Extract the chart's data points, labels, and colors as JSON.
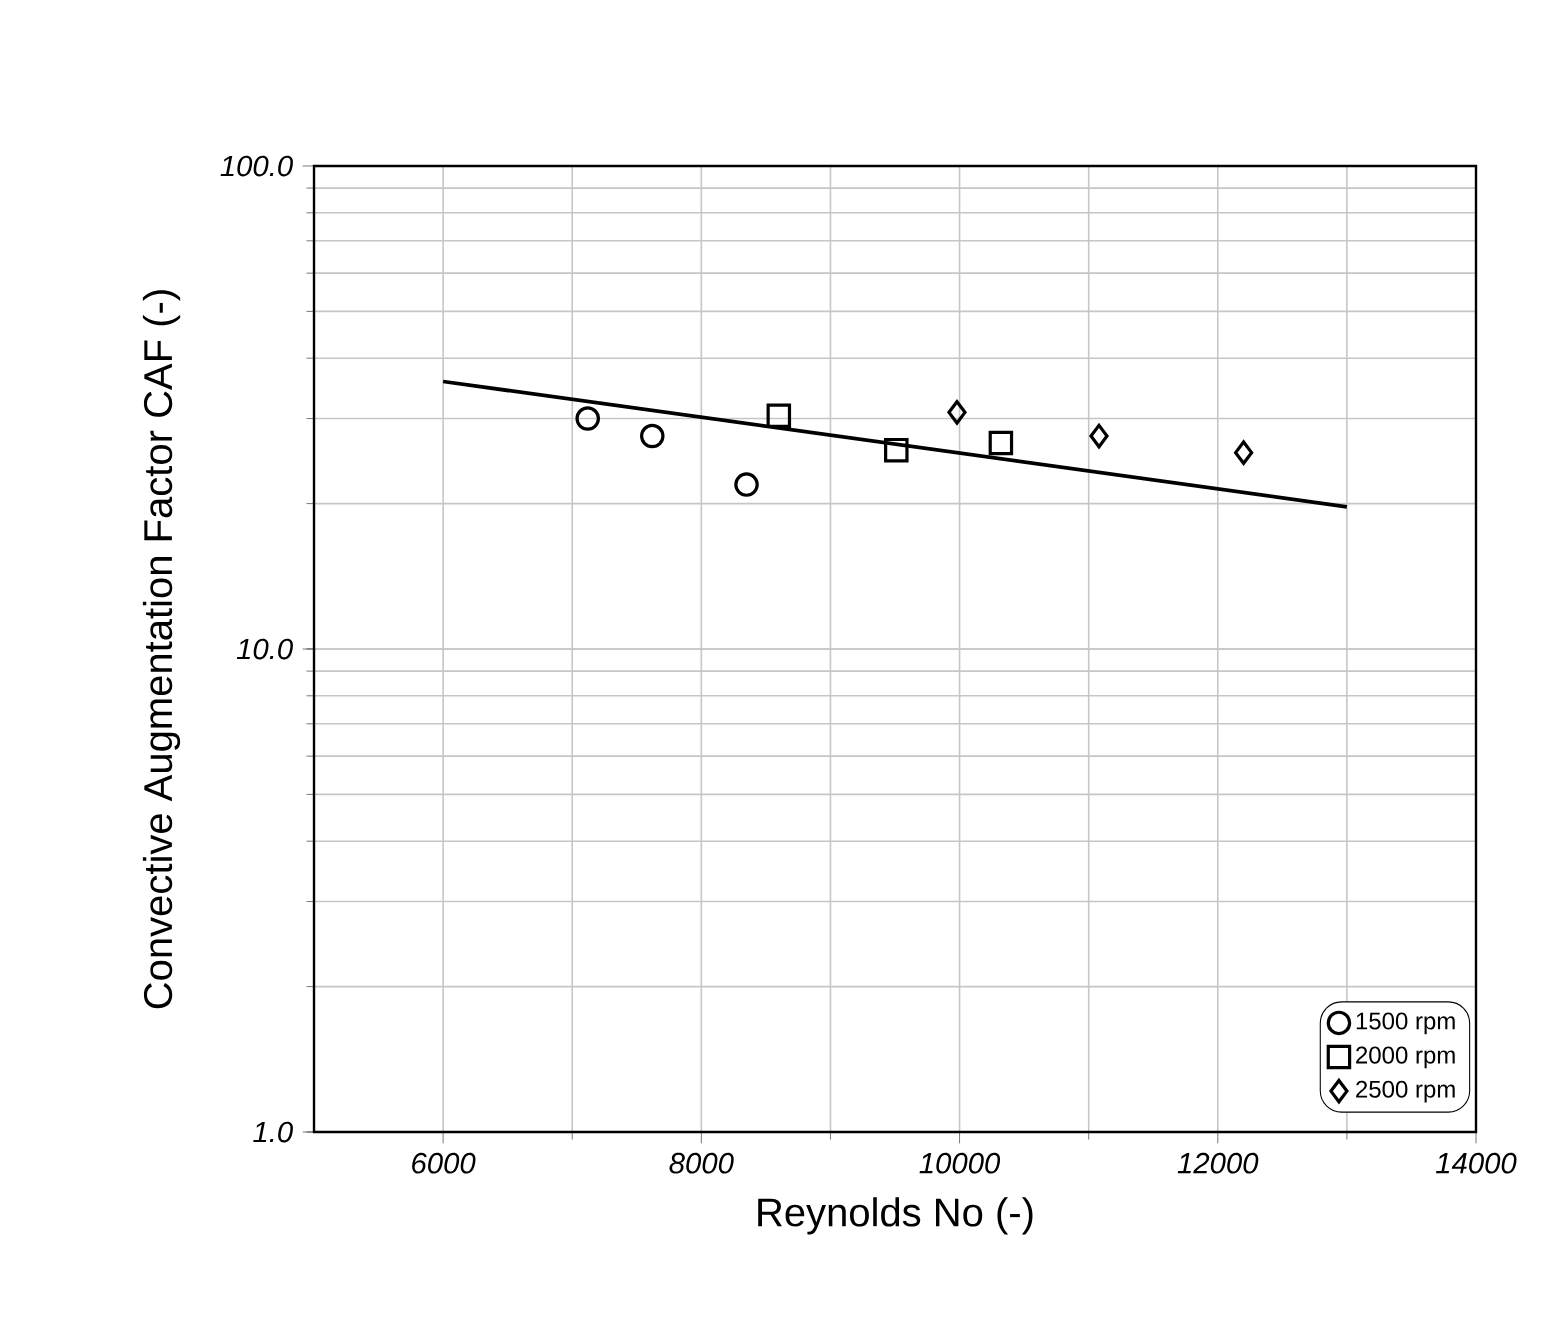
{
  "chart_data": {
    "type": "scatter",
    "xlabel": "Reynolds No (-)",
    "ylabel": "Convective Augmentation Factor CAF (-)",
    "xlim": [
      5000,
      14000
    ],
    "xticks": [
      6000,
      8000,
      10000,
      12000,
      14000
    ],
    "ylim": [
      1,
      100
    ],
    "yticks": [
      {
        "value": 1,
        "label": "1.0"
      },
      {
        "value": 10,
        "label": "10.0"
      },
      {
        "value": 100,
        "label": "100.0"
      }
    ],
    "log": "y",
    "grid": true,
    "legend": "bottom right",
    "series": [
      {
        "type": "line",
        "color": "#000000",
        "marker": "none",
        "x": [
          6000,
          13000
        ],
        "values": [
          35.8,
          19.7
        ]
      },
      {
        "name": "1500 rpm",
        "color": "#000000",
        "marker": "circle",
        "x": [
          7120,
          7620,
          8350
        ],
        "values": [
          30.0,
          27.6,
          21.9
        ]
      },
      {
        "name": "2000 rpm",
        "color": "#000000",
        "marker": "square",
        "x": [
          8600,
          9510,
          10320
        ],
        "values": [
          30.4,
          25.8,
          26.7
        ]
      },
      {
        "name": "2500 rpm",
        "color": "#000000",
        "marker": "diamond",
        "x": [
          9980,
          11080,
          12200
        ],
        "values": [
          30.9,
          27.6,
          25.5
        ]
      }
    ]
  }
}
